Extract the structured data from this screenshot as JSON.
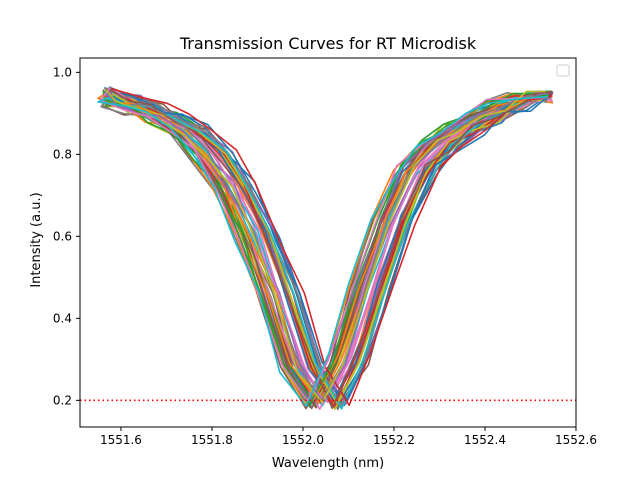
{
  "chart_data": {
    "type": "line",
    "title": "Transmission Curves for RT Microdisk",
    "xlabel": "Wavelength (nm)",
    "ylabel": "Intensity (a.u.)",
    "xlim": [
      1551.51,
      1552.6
    ],
    "ylim": [
      0.135,
      1.035
    ],
    "xticks": [
      "1551.6",
      "1551.8",
      "1552.0",
      "1552.2",
      "1552.4",
      "1552.6"
    ],
    "yticks": [
      "0.2",
      "0.4",
      "0.6",
      "0.8",
      "1.0"
    ],
    "grid": false,
    "legend": {
      "position": "top-right",
      "entries": []
    },
    "reference_line": {
      "y": 0.2,
      "style": "dotted",
      "color": "#ff0000"
    },
    "series_colors": [
      "#1f77b4",
      "#ff7f0e",
      "#2ca02c",
      "#d62728",
      "#9467bd",
      "#8c564b",
      "#e377c2",
      "#7f7f7f",
      "#bcbd22",
      "#17becf"
    ],
    "series_shape": {
      "x": [
        1551.56,
        1551.6,
        1551.65,
        1551.7,
        1551.75,
        1551.8,
        1551.85,
        1551.9,
        1551.95,
        1552.0,
        1552.05,
        1552.1,
        1552.15,
        1552.2,
        1552.25,
        1552.3,
        1552.35,
        1552.4,
        1552.45,
        1552.5,
        1552.55
      ],
      "y": [
        0.95,
        0.93,
        0.91,
        0.89,
        0.86,
        0.8,
        0.72,
        0.6,
        0.45,
        0.28,
        0.19,
        0.3,
        0.47,
        0.64,
        0.76,
        0.82,
        0.86,
        0.89,
        0.92,
        0.94,
        0.94
      ]
    },
    "series_count": 60,
    "resonance_wavelength_range": [
      1552.02,
      1552.1
    ],
    "minimum_intensity_range": [
      0.18,
      0.21
    ]
  }
}
